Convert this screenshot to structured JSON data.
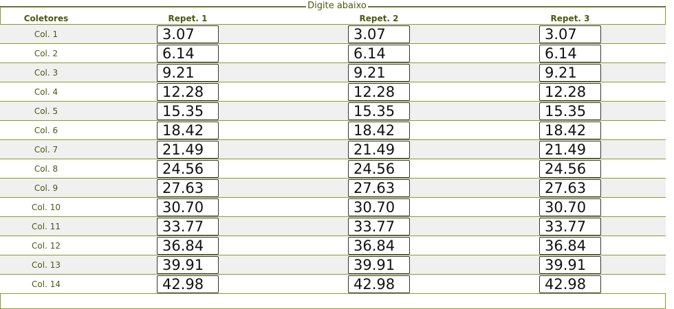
{
  "legend": "Digite abaixo",
  "headers": {
    "collectors": "Coletores",
    "rep1": "Repet. 1",
    "rep2": "Repet. 2",
    "rep3": "Repet. 3"
  },
  "rows": [
    {
      "label": "Col. 1",
      "rep1": "3.07",
      "rep2": "3.07",
      "rep3": "3.07"
    },
    {
      "label": "Col. 2",
      "rep1": "6.14",
      "rep2": "6.14",
      "rep3": "6.14"
    },
    {
      "label": "Col. 3",
      "rep1": "9.21",
      "rep2": "9.21",
      "rep3": "9.21"
    },
    {
      "label": "Col. 4",
      "rep1": "12.28",
      "rep2": "12.28",
      "rep3": "12.28"
    },
    {
      "label": "Col. 5",
      "rep1": "15.35",
      "rep2": "15.35",
      "rep3": "15.35"
    },
    {
      "label": "Col. 6",
      "rep1": "18.42",
      "rep2": "18.42",
      "rep3": "18.42"
    },
    {
      "label": "Col. 7",
      "rep1": "21.49",
      "rep2": "21.49",
      "rep3": "21.49"
    },
    {
      "label": "Col. 8",
      "rep1": "24.56",
      "rep2": "24.56",
      "rep3": "24.56"
    },
    {
      "label": "Col. 9",
      "rep1": "27.63",
      "rep2": "27.63",
      "rep3": "27.63"
    },
    {
      "label": "Col. 10",
      "rep1": "30.70",
      "rep2": "30.70",
      "rep3": "30.70"
    },
    {
      "label": "Col. 11",
      "rep1": "33.77",
      "rep2": "33.77",
      "rep3": "33.77"
    },
    {
      "label": "Col. 12",
      "rep1": "36.84",
      "rep2": "36.84",
      "rep3": "36.84"
    },
    {
      "label": "Col. 13",
      "rep1": "39.91",
      "rep2": "39.91",
      "rep3": "39.91"
    },
    {
      "label": "Col. 14",
      "rep1": "42.98",
      "rep2": "42.98",
      "rep3": "42.98"
    }
  ]
}
